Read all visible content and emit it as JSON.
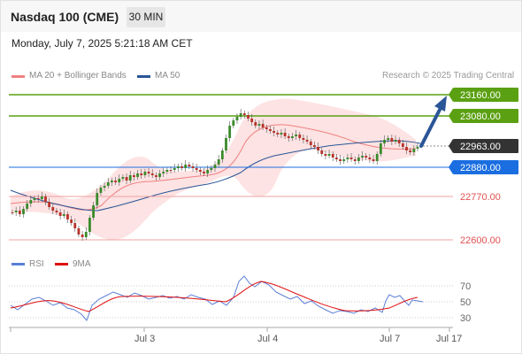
{
  "header": {
    "title": "Nasdaq 100 (CME)",
    "timeframe_label": "30 MIN"
  },
  "datetime": "Monday, July 7, 2025 5:21:18 AM CET",
  "legend": {
    "items": [
      {
        "label": "MA 20 + Bollinger Bands",
        "color": "#f08080"
      },
      {
        "label": "MA 50",
        "color": "#2a5597"
      }
    ],
    "watermark": "Research © 2025 Trading Central"
  },
  "levels": [
    {
      "label": "23160.00",
      "kind": "resistance",
      "value": 23160,
      "color": "#5aa012"
    },
    {
      "label": "23080.00",
      "kind": "resistance",
      "value": 23080,
      "color": "#5aa012"
    },
    {
      "label": "22963.00",
      "kind": "current",
      "value": 22963,
      "color": "#333333"
    },
    {
      "label": "22880.00",
      "kind": "pivot",
      "value": 22880,
      "color": "#1a6ee0"
    },
    {
      "label": "22770.00",
      "kind": "support",
      "value": 22770,
      "color": "#e05050"
    },
    {
      "label": "22600.00",
      "kind": "support",
      "value": 22600,
      "color": "#e05050"
    }
  ],
  "rsi_panel": {
    "legend": [
      {
        "label": "RSI",
        "color": "#5b7fd6"
      },
      {
        "label": "9MA",
        "color": "#e01010"
      }
    ],
    "ticks": [
      "70",
      "50",
      "30"
    ]
  },
  "x_axis": {
    "ticks": [
      "Jul 3",
      "Jul 4",
      "Jul 7",
      "Jul 17"
    ]
  },
  "colors": {
    "up_candle": "#3a8a2a",
    "down_candle": "#b8322a",
    "bollinger_fill": "#fde0e0",
    "arrow": "#2a5597"
  }
}
